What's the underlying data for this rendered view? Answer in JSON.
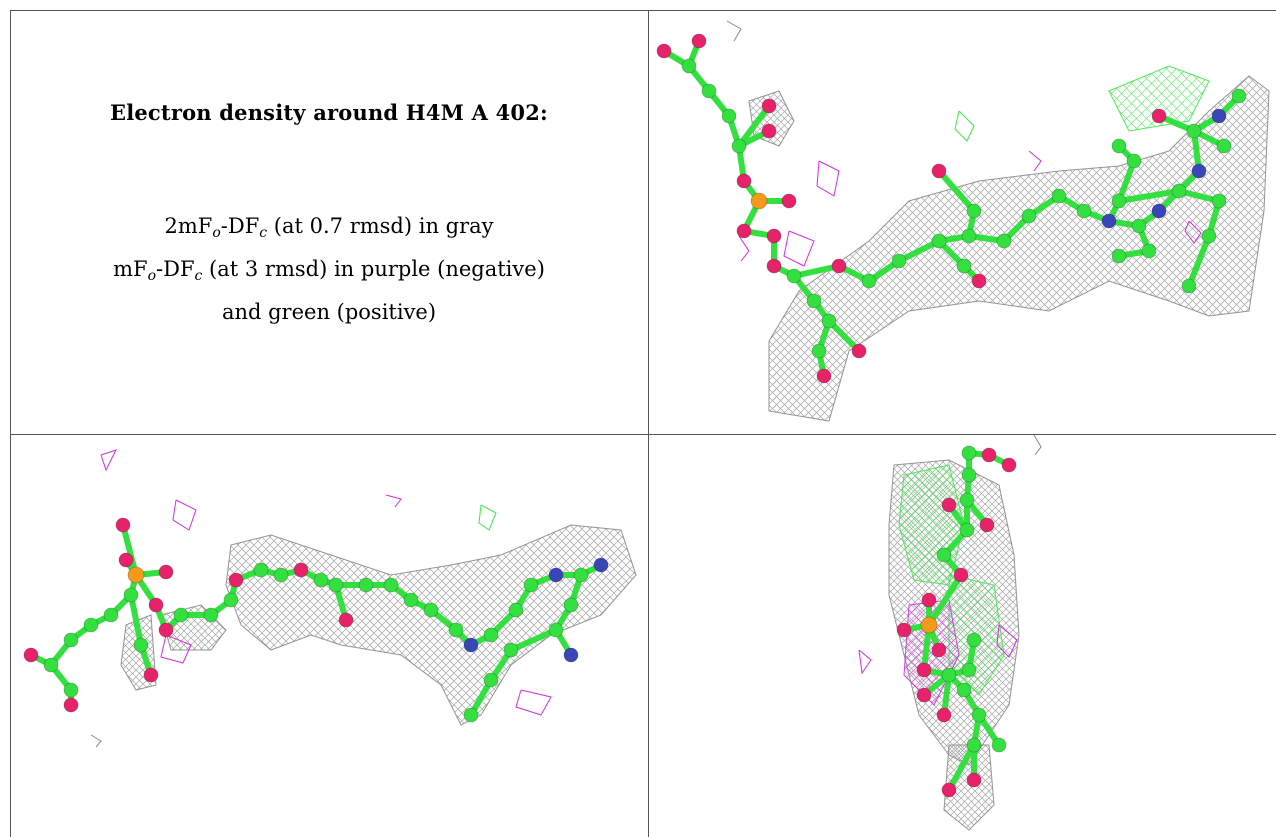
{
  "caption": {
    "title": "Electron density around H4M A 402:",
    "line1": {
      "pre": "2mF",
      "sub1": "o",
      "mid": "-DF",
      "sub2": "c",
      "post": " (at 0.7 rmsd) in gray"
    },
    "line2": {
      "pre": "mF",
      "sub1": "o",
      "mid": "-DF",
      "sub2": "c",
      "post": " (at 3 rmsd) in purple (negative)"
    },
    "line3": "and green (positive)"
  },
  "colors": {
    "carbon": "#33e040",
    "oxygen": "#e8226a",
    "nitrogen": "#3a46b8",
    "phosphorus": "#f39a1a",
    "mesh_gray": "#8a8a8a",
    "mesh_purple": "#d02ee0",
    "mesh_green": "#3ee84a"
  },
  "panels": [
    {
      "name": "view-top-right"
    },
    {
      "name": "view-bottom-left"
    },
    {
      "name": "view-bottom-right"
    }
  ]
}
